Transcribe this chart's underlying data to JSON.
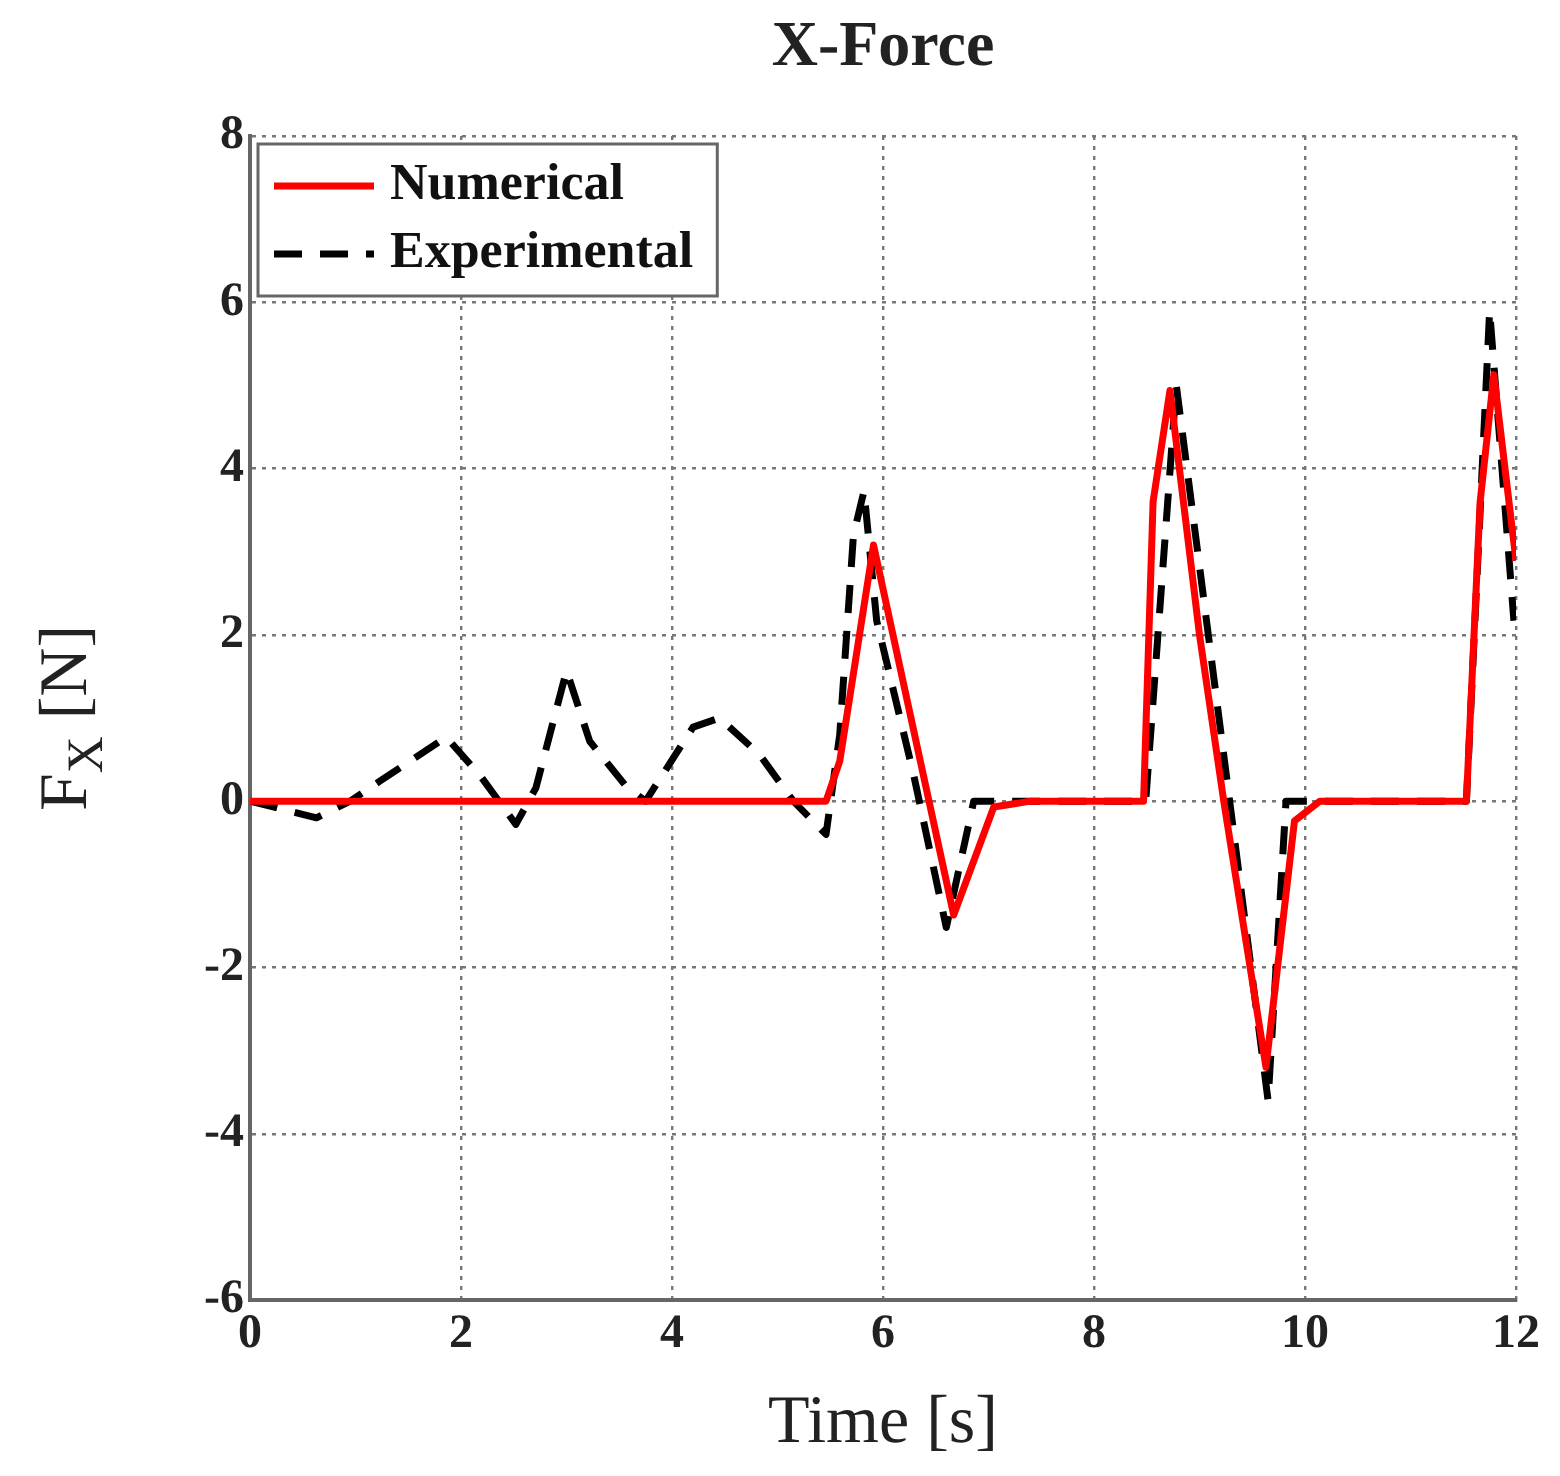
{
  "chart_data": {
    "type": "line",
    "title": "X-Force",
    "xlabel": "Time [s]",
    "ylabel": "F$_{X}$ [N]",
    "series": [
      {
        "name": "Numerical",
        "color": "#ff0000",
        "line_style": "solid",
        "x": [
          0,
          5.46,
          5.59,
          5.91,
          6.67,
          7.05,
          7.4,
          8.47,
          8.56,
          8.72,
          9.0,
          9.23,
          9.63,
          9.9,
          10.14,
          11.53,
          11.66,
          11.79,
          12.0
        ],
        "values": [
          0,
          0,
          0.48,
          3.08,
          -1.37,
          -0.07,
          0,
          0,
          3.6,
          4.94,
          2.0,
          0,
          -3.2,
          -0.24,
          0,
          0,
          3.6,
          5.13,
          2.89
        ]
      },
      {
        "name": "Experimental",
        "color": "#000000",
        "line_style": "dashed",
        "x": [
          0,
          0.63,
          0.95,
          1.23,
          1.86,
          2.18,
          2.52,
          2.71,
          3.0,
          3.22,
          3.57,
          3.75,
          4.2,
          4.45,
          4.83,
          5.15,
          5.46,
          5.59,
          5.72,
          5.82,
          5.94,
          6.29,
          6.6,
          6.86,
          8.49,
          8.78,
          9.65,
          9.82,
          11.53,
          11.75,
          11.98
        ],
        "values": [
          0,
          -0.2,
          0,
          0.24,
          0.77,
          0.31,
          -0.28,
          0.16,
          1.57,
          0.72,
          0.17,
          0,
          0.89,
          1.0,
          0.56,
          0,
          -0.4,
          0.8,
          3.2,
          3.73,
          2.17,
          0.32,
          -1.52,
          0,
          0,
          5.0,
          -3.6,
          0,
          0,
          5.9,
          2.17
        ]
      }
    ],
    "xlim": [
      0,
      12
    ],
    "xticks": [
      0,
      2,
      4,
      6,
      8,
      10,
      12
    ],
    "ylim": [
      -6,
      8
    ],
    "yticks": [
      -6,
      -4,
      -2,
      0,
      2,
      4,
      6,
      8
    ],
    "grid": true,
    "legend": "top left",
    "marker": "none"
  }
}
